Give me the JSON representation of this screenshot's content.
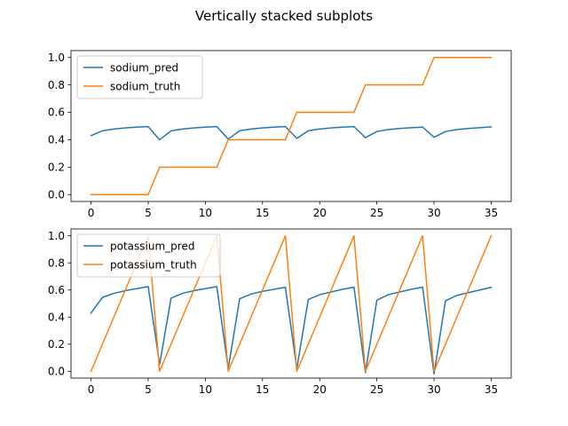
{
  "figure": {
    "title": "Vertically stacked subplots"
  },
  "chart_data": [
    {
      "type": "line",
      "title": "",
      "xlabel": "",
      "ylabel": "",
      "xlim": [
        -1.75,
        36.75
      ],
      "ylim": [
        -0.05,
        1.05
      ],
      "xticks": [
        0,
        5,
        10,
        15,
        20,
        25,
        30,
        35
      ],
      "yticks": [
        0.0,
        0.2,
        0.4,
        0.6,
        0.8,
        1.0
      ],
      "ytick_labels": [
        "0.0",
        "0.2",
        "0.4",
        "0.6",
        "0.8",
        "1.0"
      ],
      "grid": false,
      "legend_position": "upper-left",
      "x": [
        0,
        1,
        2,
        3,
        4,
        5,
        6,
        7,
        8,
        9,
        10,
        11,
        12,
        13,
        14,
        15,
        16,
        17,
        18,
        19,
        20,
        21,
        22,
        23,
        24,
        25,
        26,
        27,
        28,
        29,
        30,
        31,
        32,
        33,
        34,
        35
      ],
      "series": [
        {
          "name": "sodium_pred",
          "color": "#1f77b4",
          "values": [
            0.43,
            0.465,
            0.478,
            0.486,
            0.492,
            0.496,
            0.4,
            0.465,
            0.478,
            0.486,
            0.492,
            0.496,
            0.405,
            0.465,
            0.478,
            0.486,
            0.492,
            0.496,
            0.41,
            0.465,
            0.478,
            0.486,
            0.492,
            0.496,
            0.415,
            0.46,
            0.474,
            0.482,
            0.488,
            0.492,
            0.418,
            0.46,
            0.474,
            0.482,
            0.488,
            0.494
          ]
        },
        {
          "name": "sodium_truth",
          "color": "#ff7f0e",
          "values": [
            0,
            0,
            0,
            0,
            0,
            0,
            0.2,
            0.2,
            0.2,
            0.2,
            0.2,
            0.2,
            0.4,
            0.4,
            0.4,
            0.4,
            0.4,
            0.4,
            0.6,
            0.6,
            0.6,
            0.6,
            0.6,
            0.6,
            0.8,
            0.8,
            0.8,
            0.8,
            0.8,
            0.8,
            1.0,
            1.0,
            1.0,
            1.0,
            1.0,
            1.0
          ]
        }
      ]
    },
    {
      "type": "line",
      "title": "",
      "xlabel": "",
      "ylabel": "",
      "xlim": [
        -1.75,
        36.75
      ],
      "ylim": [
        -0.05,
        1.05
      ],
      "xticks": [
        0,
        5,
        10,
        15,
        20,
        25,
        30,
        35
      ],
      "yticks": [
        0.0,
        0.2,
        0.4,
        0.6,
        0.8,
        1.0
      ],
      "ytick_labels": [
        "0.0",
        "0.2",
        "0.4",
        "0.6",
        "0.8",
        "1.0"
      ],
      "grid": false,
      "legend_position": "upper-left",
      "x": [
        0,
        1,
        2,
        3,
        4,
        5,
        6,
        7,
        8,
        9,
        10,
        11,
        12,
        13,
        14,
        15,
        16,
        17,
        18,
        19,
        20,
        21,
        22,
        23,
        24,
        25,
        26,
        27,
        28,
        29,
        30,
        31,
        32,
        33,
        34,
        35
      ],
      "series": [
        {
          "name": "potassium_pred",
          "color": "#1f77b4",
          "values": [
            0.43,
            0.545,
            0.575,
            0.595,
            0.61,
            0.625,
            0.05,
            0.54,
            0.575,
            0.595,
            0.61,
            0.625,
            0.02,
            0.535,
            0.57,
            0.59,
            0.605,
            0.62,
            0.02,
            0.53,
            0.565,
            0.585,
            0.605,
            0.62,
            -0.01,
            0.525,
            0.565,
            0.585,
            0.605,
            0.62,
            -0.02,
            0.52,
            0.56,
            0.58,
            0.6,
            0.62
          ]
        },
        {
          "name": "potassium_truth",
          "color": "#ff7f0e",
          "values": [
            0,
            0.2,
            0.4,
            0.6,
            0.8,
            1.0,
            0,
            0.2,
            0.4,
            0.6,
            0.8,
            1.0,
            0,
            0.2,
            0.4,
            0.6,
            0.8,
            1.0,
            0,
            0.2,
            0.4,
            0.6,
            0.8,
            1.0,
            0,
            0.2,
            0.4,
            0.6,
            0.8,
            1.0,
            0,
            0.2,
            0.4,
            0.6,
            0.8,
            1.0
          ]
        }
      ]
    }
  ]
}
